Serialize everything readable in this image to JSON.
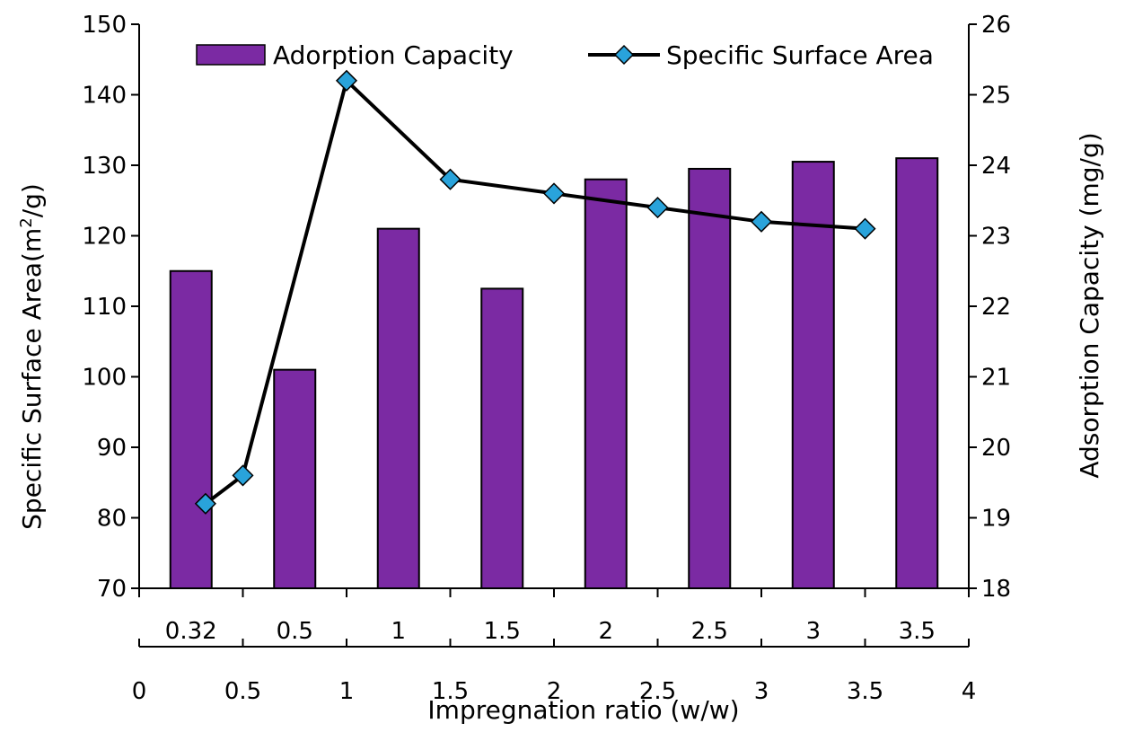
{
  "chart_data": {
    "type": "bar+line",
    "xlabel": "Impregnation ratio (w/w)",
    "categories": [
      "0.32",
      "0.5",
      "1",
      "1.5",
      "2",
      "2.5",
      "3",
      "3.5"
    ],
    "bar_series": {
      "name": "Adorption Capacity",
      "axis": "right",
      "color": "#7B2AA3",
      "values": [
        22.5,
        21.1,
        23.1,
        22.25,
        23.8,
        23.95,
        24.05,
        24.1
      ]
    },
    "line_series": {
      "name": "Specific Surface Area",
      "axis": "left",
      "line_color": "#000000",
      "marker_color": "#29A3DB",
      "x": [
        0.32,
        0.5,
        1,
        1.5,
        2,
        2.5,
        3,
        3.5
      ],
      "values": [
        82,
        86,
        142,
        128,
        126,
        124,
        122,
        121
      ]
    },
    "left_axis": {
      "label_main": "Specific Surface Area(m",
      "label_sup": "2",
      "label_end": "/g)",
      "ylim": [
        70,
        150
      ],
      "ticks": [
        "70",
        "80",
        "90",
        "100",
        "110",
        "120",
        "130",
        "140",
        "150"
      ]
    },
    "right_axis": {
      "label": "Adsorption Capacity (mg/g)",
      "ylim": [
        18,
        26
      ],
      "ticks": [
        "18",
        "19",
        "20",
        "21",
        "22",
        "23",
        "24",
        "25",
        "26"
      ]
    },
    "secondary_x_axis": {
      "xlim": [
        0,
        4
      ],
      "ticks": [
        "0",
        "0.5",
        "1",
        "1.5",
        "2",
        "2.5",
        "3",
        "3.5",
        "4"
      ]
    },
    "legend": {
      "placement": "top",
      "bar_label": "Adorption Capacity",
      "line_label": "Specific Surface Area"
    }
  }
}
